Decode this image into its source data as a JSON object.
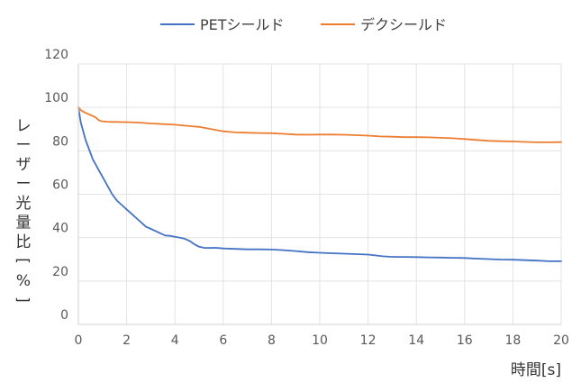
{
  "chart_data": {
    "type": "line",
    "title": "",
    "xlabel": "時間[s]",
    "ylabel": "レーザー光量比[%]",
    "xlim": [
      0,
      20
    ],
    "ylim": [
      0,
      120
    ],
    "x_ticks": [
      "0",
      "2",
      "4",
      "6",
      "8",
      "10",
      "12",
      "14",
      "16",
      "18",
      "20"
    ],
    "y_ticks": [
      "0",
      "20",
      "40",
      "60",
      "80",
      "100",
      "120"
    ],
    "grid": "vertical-and-horizontal",
    "legend_position": "top",
    "series": [
      {
        "name": "PETシールド",
        "color": "#4472C4",
        "x": [
          0,
          0.1,
          0.2,
          0.3,
          0.4,
          0.5,
          0.6,
          0.7,
          0.8,
          0.9,
          1.0,
          1.2,
          1.4,
          1.6,
          1.8,
          2.0,
          2.2,
          2.4,
          2.6,
          2.8,
          3.0,
          3.2,
          3.4,
          3.6,
          3.8,
          4.0,
          4.2,
          4.4,
          4.6,
          4.8,
          5.0,
          5.2,
          5.4,
          5.6,
          5.8,
          6.0,
          6.5,
          7.0,
          7.5,
          8.0,
          8.5,
          9.0,
          9.5,
          10.0,
          10.5,
          11.0,
          11.5,
          12.0,
          12.3,
          12.6,
          12.9,
          13.2,
          13.5,
          14.0,
          14.5,
          15.0,
          15.5,
          16.0,
          16.5,
          17.0,
          17.5,
          18.0,
          18.5,
          19.0,
          19.5,
          20.0
        ],
        "values": [
          100,
          93,
          89,
          85,
          82,
          79,
          76,
          74,
          72,
          70,
          68,
          64,
          60,
          57,
          55,
          53,
          51,
          49,
          47,
          45,
          44,
          43,
          42,
          41,
          40.8,
          40.4,
          40,
          39.5,
          38.5,
          37,
          35.8,
          35.3,
          35.2,
          35.3,
          35.2,
          35,
          34.8,
          34.6,
          34.6,
          34.5,
          34.2,
          33.8,
          33.3,
          33,
          32.8,
          32.6,
          32.4,
          32.2,
          31.8,
          31.4,
          31.2,
          31.1,
          31.1,
          31.0,
          30.9,
          30.8,
          30.7,
          30.6,
          30.3,
          30.1,
          29.9,
          29.8,
          29.6,
          29.4,
          29.1,
          29.1
        ]
      },
      {
        "name": "デクシールド",
        "color": "#ED7D31",
        "x": [
          0,
          0.1,
          0.2,
          0.3,
          0.4,
          0.5,
          0.6,
          0.7,
          0.8,
          0.9,
          1.0,
          1.2,
          1.4,
          1.6,
          1.8,
          2.0,
          2.5,
          3.0,
          3.5,
          4.0,
          4.5,
          5.0,
          5.5,
          6.0,
          6.5,
          7.0,
          7.5,
          8.0,
          8.5,
          9.0,
          9.5,
          10.0,
          10.5,
          11.0,
          11.5,
          12.0,
          12.5,
          13.0,
          13.5,
          14.0,
          14.5,
          15.0,
          15.5,
          16.0,
          16.5,
          17.0,
          17.5,
          18.0,
          18.5,
          19.0,
          19.5,
          20.0
        ],
        "values": [
          100,
          98.8,
          98,
          97.5,
          97,
          96.5,
          96,
          95.5,
          94.5,
          93.8,
          93.6,
          93.4,
          93.3,
          93.3,
          93.2,
          93.2,
          93,
          92.6,
          92.3,
          92,
          91.5,
          91,
          90,
          89,
          88.5,
          88.3,
          88.2,
          88.1,
          87.8,
          87.5,
          87.4,
          87.5,
          87.5,
          87.4,
          87.2,
          87,
          86.6,
          86.5,
          86.3,
          86.3,
          86.2,
          86,
          85.8,
          85.4,
          85,
          84.6,
          84.4,
          84.3,
          84.1,
          83.9,
          83.9,
          84
        ]
      }
    ]
  }
}
